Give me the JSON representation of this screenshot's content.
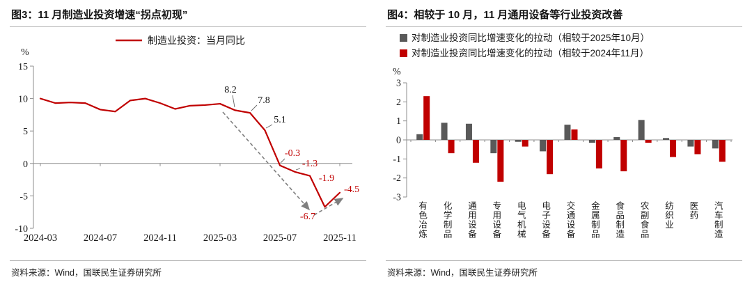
{
  "colors": {
    "red": "#C00000",
    "gray_series": "#595959",
    "axis": "#8c8c8c",
    "arrow": "#7f7f7f",
    "label_black": "#111111"
  },
  "figure3": {
    "title": "图3：11 月制造业投资增速“拐点初现”",
    "source": "资料来源：Wind，国联民生证券研究所"
  },
  "figure4": {
    "title": "图4：相较于 10 月，11 月通用设备等行业投资改善",
    "source": "资料来源：Wind，国联民生证券研究所"
  },
  "chart_data": [
    {
      "type": "line",
      "title": "11 月制造业投资增速“拐点初现”",
      "legend": "制造业投资：当月同比",
      "unit": "%",
      "ylim": [
        -10,
        15
      ],
      "yticks": [
        15,
        10,
        5,
        0,
        -5,
        -10
      ],
      "xticks": [
        "2024-03",
        "2024-07",
        "2024-11",
        "2025-03",
        "2025-07",
        "2025-11"
      ],
      "x": [
        "2024-03",
        "2024-04",
        "2024-05",
        "2024-06",
        "2024-07",
        "2024-08",
        "2024-09",
        "2024-10",
        "2024-11",
        "2024-12",
        "2025-01",
        "2025-02",
        "2025-03",
        "2025-04",
        "2025-05",
        "2025-06",
        "2025-07",
        "2025-08",
        "2025-09",
        "2025-10",
        "2025-11"
      ],
      "values": [
        10.0,
        9.3,
        9.4,
        9.3,
        8.3,
        8.0,
        9.7,
        10.0,
        9.3,
        8.4,
        8.9,
        9.0,
        9.2,
        8.2,
        7.8,
        5.1,
        -0.3,
        -1.3,
        -1.9,
        -6.7,
        -4.5
      ],
      "point_labels": [
        {
          "x": "2025-04",
          "text": "8.2",
          "color": "black"
        },
        {
          "x": "2025-05",
          "text": "7.8",
          "color": "black"
        },
        {
          "x": "2025-06",
          "text": "5.1",
          "color": "black"
        },
        {
          "x": "2025-07",
          "text": "-0.3",
          "color": "red"
        },
        {
          "x": "2025-08",
          "text": "-1.3",
          "color": "red"
        },
        {
          "x": "2025-09",
          "text": "-1.9",
          "color": "red"
        },
        {
          "x": "2025-10",
          "text": "-6.7",
          "color": "red"
        },
        {
          "x": "2025-11",
          "text": "-4.5",
          "color": "red"
        }
      ],
      "annotations": [
        "dashed-gray-arrow-downtrend",
        "dashed-gray-arrow-upturn"
      ],
      "line_color": "#C00000",
      "grid": false,
      "legend_position": "top-center"
    },
    {
      "type": "bar",
      "title": "相较于 10 月，11 月通用设备等行业投资改善",
      "unit": "%",
      "ylim": [
        -3,
        3
      ],
      "yticks": [
        3,
        2,
        1,
        0,
        -1,
        -2,
        -3
      ],
      "categories": [
        "有色冶炼",
        "化学制品",
        "通用设备",
        "专用设备",
        "电气机械",
        "电子设备",
        "交通设备",
        "金属制品",
        "食品制造",
        "农副食品",
        "纺织业",
        "医药",
        "汽车制造"
      ],
      "series": [
        {
          "name": "对制造业投资同比增速变化的拉动（相较于2025年10月）",
          "color": "#595959",
          "values": [
            0.3,
            0.9,
            0.85,
            -0.7,
            -0.1,
            -0.6,
            0.8,
            -0.15,
            0.15,
            1.05,
            0.1,
            -0.35,
            -0.45
          ]
        },
        {
          "name": "对制造业投资同比增速变化的拉动（相较于2024年11月）",
          "color": "#C00000",
          "values": [
            2.3,
            -0.7,
            -1.2,
            -2.2,
            -0.35,
            -1.8,
            0.55,
            -1.5,
            -1.65,
            -0.15,
            -0.9,
            -0.75,
            -1.15
          ]
        }
      ],
      "grid": false,
      "legend_position": "top-left"
    }
  ]
}
